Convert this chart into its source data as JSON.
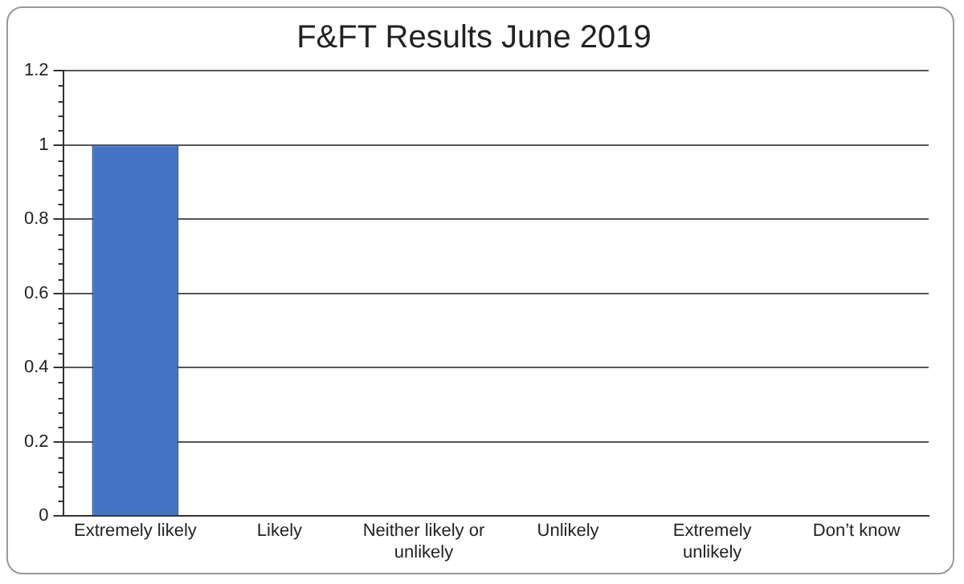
{
  "chart_data": {
    "type": "bar",
    "title": "F&FT Results June 2019",
    "categories": [
      "Extremely likely",
      "Likely",
      "Neither likely or unlikely",
      "Unlikely",
      "Extremely unlikely",
      "Don’t know"
    ],
    "values": [
      1,
      0,
      0,
      0,
      0,
      0
    ],
    "color": "#4472c4",
    "ylim": [
      0,
      1.2
    ],
    "yticks": [
      0,
      0.2,
      0.4,
      0.6,
      0.8,
      1,
      1.2
    ],
    "grid": "y"
  }
}
